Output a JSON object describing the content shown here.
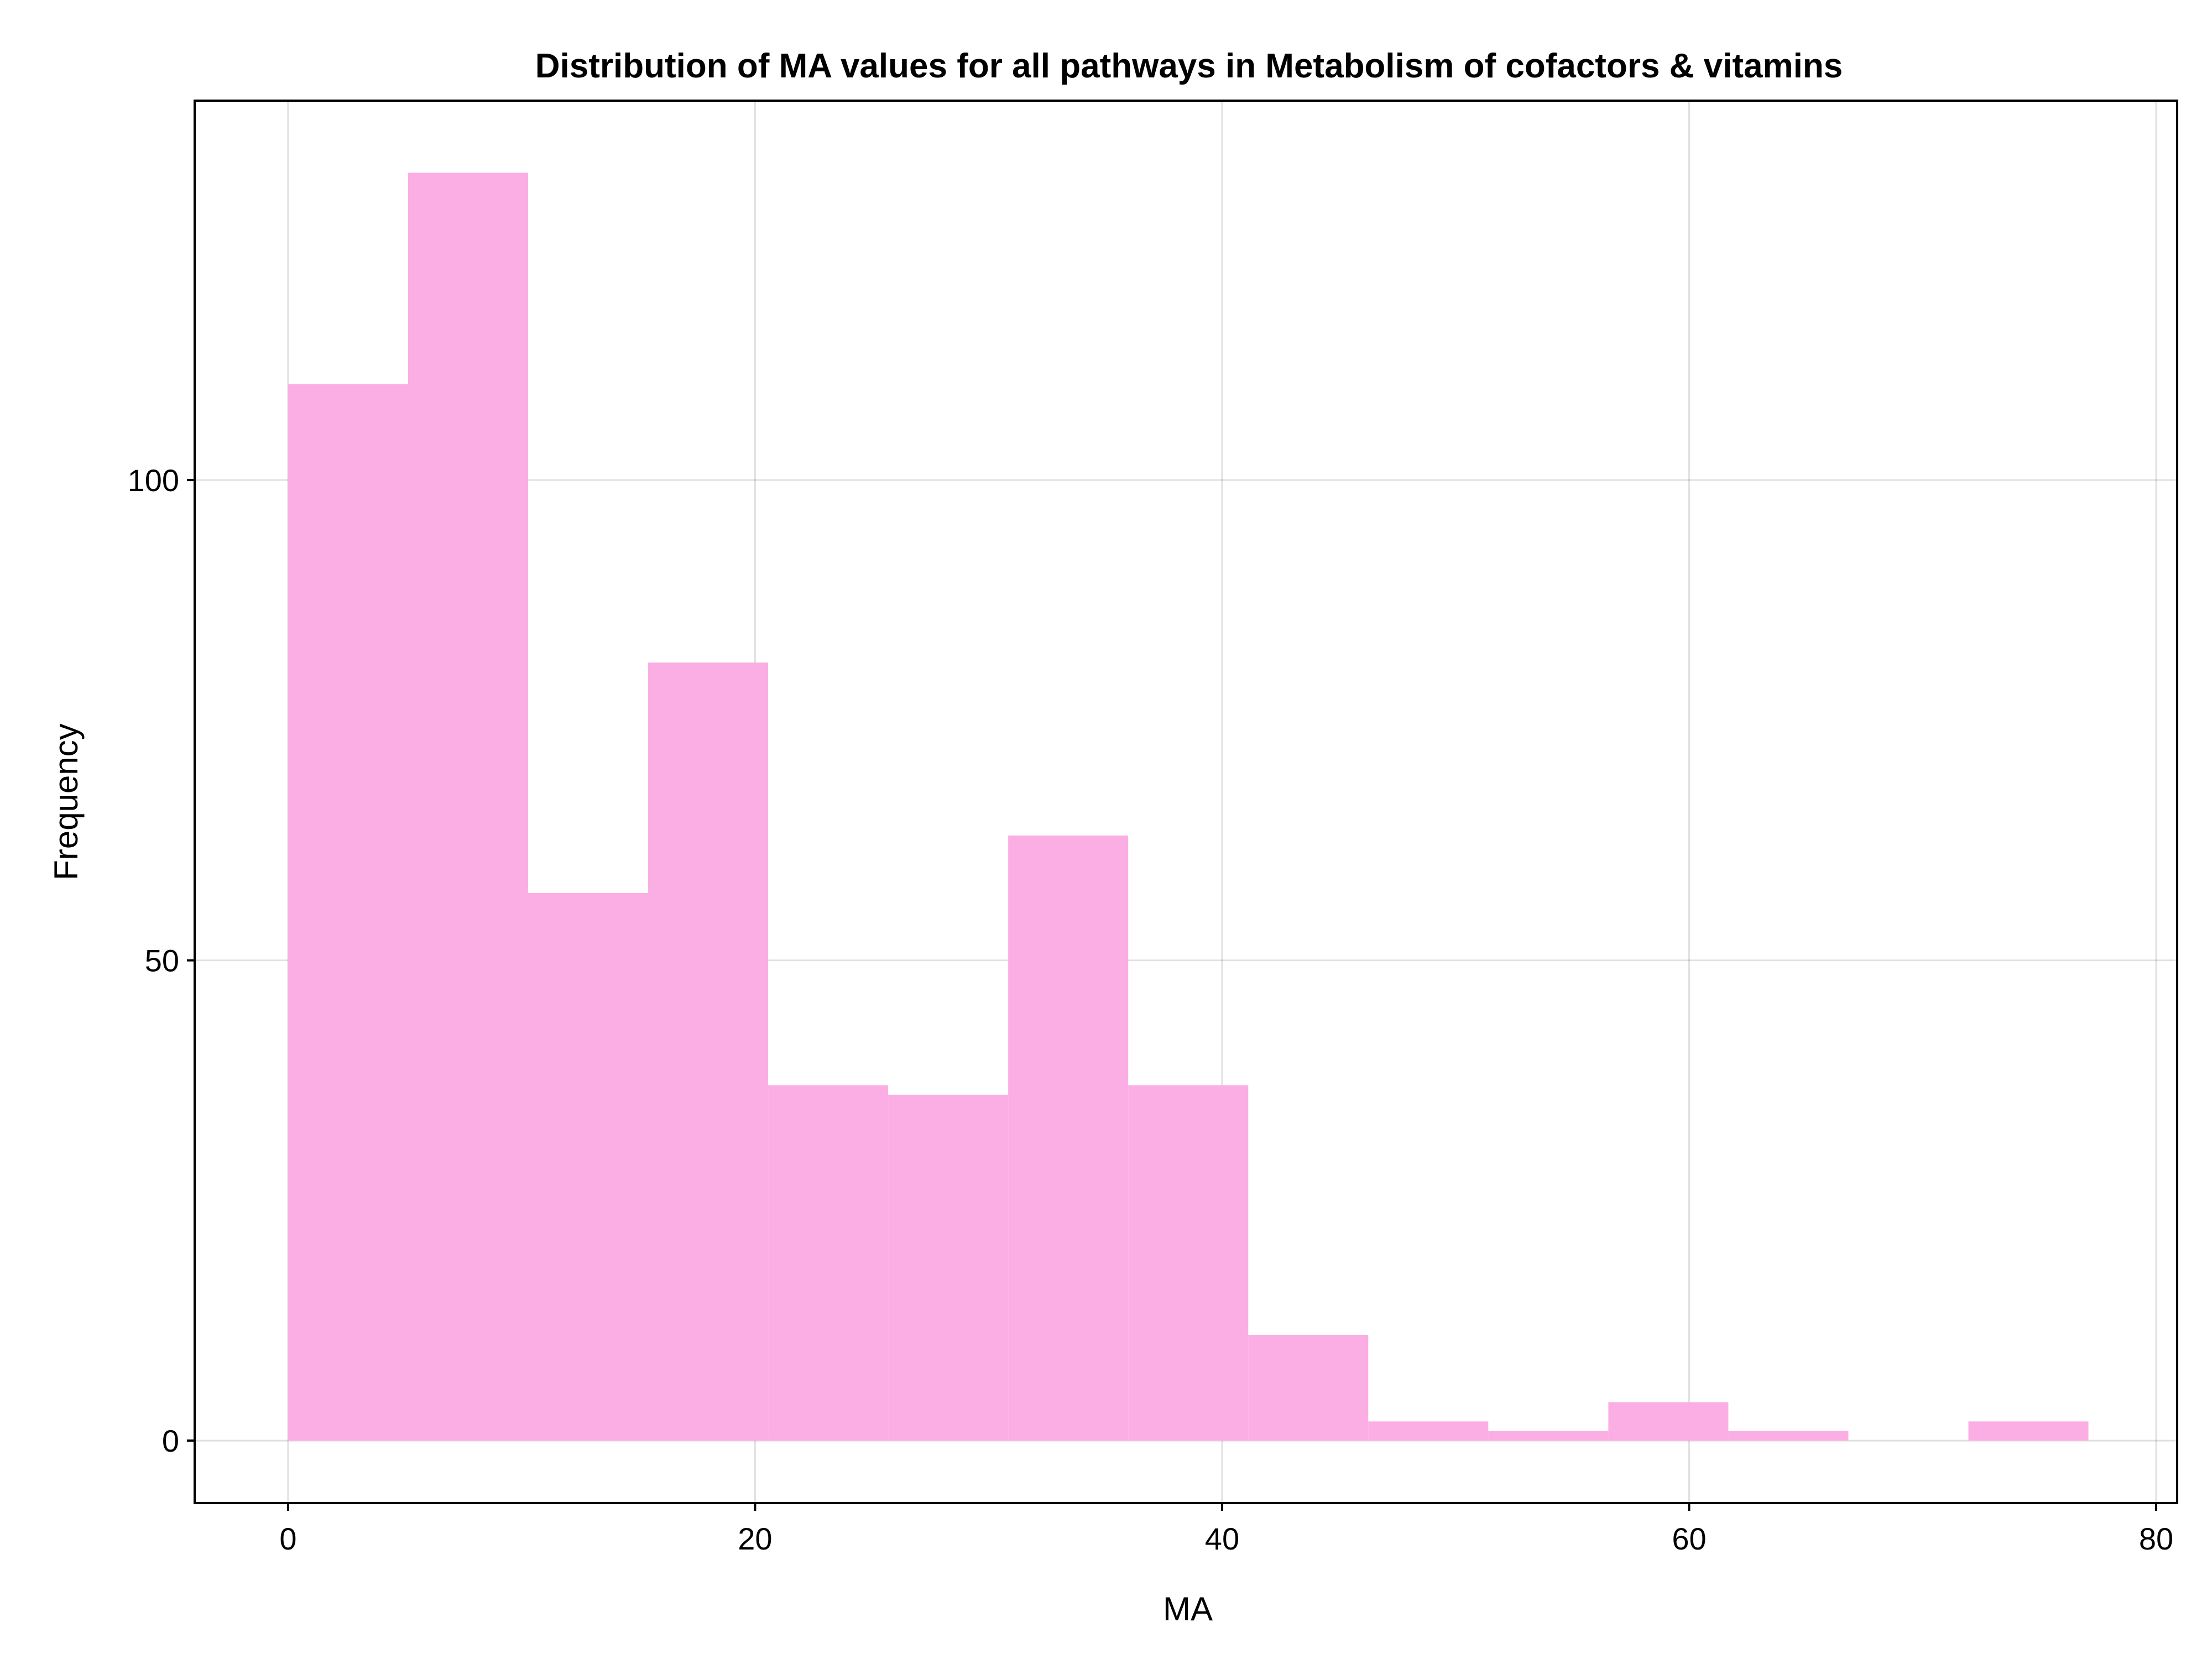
{
  "chart_data": {
    "type": "histogram",
    "title": "Distribution of MA values for all pathways in Metabolism of cofactors & vitamins",
    "xlabel": "MA",
    "ylabel": "Frequency",
    "xlim": [
      -4,
      80.9
    ],
    "ylim": [
      -6.5,
      139.5
    ],
    "x_ticks": [
      0,
      20,
      40,
      60,
      80
    ],
    "y_ticks": [
      0,
      50,
      100
    ],
    "grid": true,
    "legend": "none",
    "bar_color": "#fbaee3",
    "bins": [
      {
        "start": 0.0,
        "end": 5.14,
        "count": 110
      },
      {
        "start": 5.14,
        "end": 10.28,
        "count": 132
      },
      {
        "start": 10.28,
        "end": 15.42,
        "count": 57
      },
      {
        "start": 15.42,
        "end": 20.56,
        "count": 81
      },
      {
        "start": 20.56,
        "end": 25.7,
        "count": 37
      },
      {
        "start": 25.7,
        "end": 30.84,
        "count": 36
      },
      {
        "start": 30.84,
        "end": 35.98,
        "count": 63
      },
      {
        "start": 35.98,
        "end": 41.12,
        "count": 37
      },
      {
        "start": 41.12,
        "end": 46.26,
        "count": 11
      },
      {
        "start": 46.26,
        "end": 51.4,
        "count": 2
      },
      {
        "start": 51.4,
        "end": 56.54,
        "count": 1
      },
      {
        "start": 56.54,
        "end": 61.68,
        "count": 4
      },
      {
        "start": 61.68,
        "end": 66.82,
        "count": 1
      },
      {
        "start": 66.82,
        "end": 71.96,
        "count": 0
      },
      {
        "start": 71.96,
        "end": 77.1,
        "count": 2
      }
    ]
  }
}
